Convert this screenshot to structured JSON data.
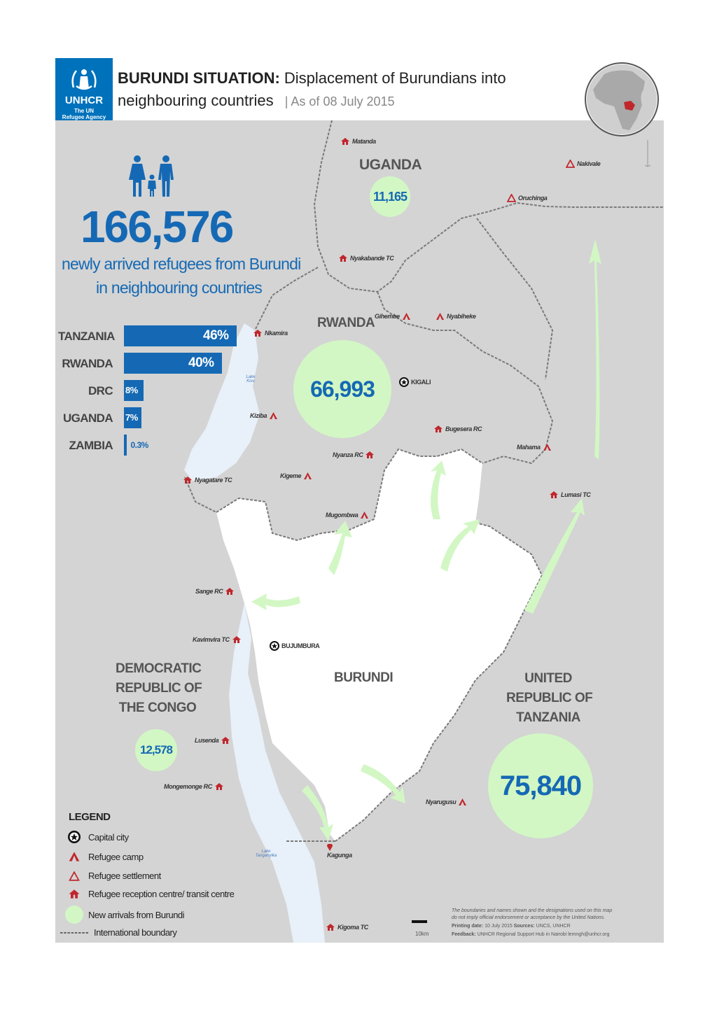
{
  "header": {
    "org_name": "UNHCR",
    "org_subtitle_1": "The UN",
    "org_subtitle_2": "Refugee Agency",
    "title_bold": "BURUNDI SITUATION:",
    "title_rest": " Displacement of Burundians into",
    "title_line2": "neighbouring countries",
    "as_of": "| As of 08 July 2015"
  },
  "summary": {
    "total": "166,576",
    "caption_line1": "newly arrived refugees from Burundi",
    "caption_line2": "in neighbouring countries"
  },
  "chart_data": {
    "type": "bar",
    "orientation": "horizontal",
    "categories": [
      "TANZANIA",
      "RWANDA",
      "DRC",
      "UGANDA",
      "ZAMBIA"
    ],
    "values": [
      46,
      40,
      8,
      7,
      0.3
    ],
    "value_labels": [
      "46%",
      "40%",
      "8%",
      "7%",
      "0.3%"
    ],
    "color": "#1569b4"
  },
  "countries": {
    "uganda": {
      "name": "UGANDA",
      "value": "11,165"
    },
    "rwanda": {
      "name": "RWANDA",
      "value": "66,993"
    },
    "drc": {
      "name_l1": "DEMOCRATIC",
      "name_l2": "REPUBLIC OF",
      "name_l3": "THE CONGO",
      "value": "12,578"
    },
    "tanzania": {
      "name_l1": "UNITED",
      "name_l2": "REPUBLIC OF",
      "name_l3": "TANZANIA",
      "value": "75,840"
    },
    "burundi": {
      "name": "BURUNDI"
    }
  },
  "sites": {
    "matanda": "Matanda",
    "nakivale": "Nakivale",
    "oruchinga": "Oruchinga",
    "nyakabande": "Nyakabande TC",
    "gihembe": "Gihembe",
    "nyabiheke": "Nyabiheke",
    "nkamira": "Nkamira",
    "kigali": "KIGALI",
    "kiziba": "Kiziba",
    "bugesera": "Bugesera RC",
    "nyanza": "Nyanza RC",
    "mahama": "Mahama",
    "kigeme": "Kigeme",
    "nyagatare": "Nyagatare TC",
    "mugombwa": "Mugombwa",
    "lumasi": "Lumasi TC",
    "sange": "Sange RC",
    "kavimvira": "Kavimvira TC",
    "bujumbura": "BUJUMBURA",
    "lusenda": "Lusenda",
    "mongemonge": "Mongemonge RC",
    "nyarugusu": "Nyarugusu",
    "kagunga": "Kagunga",
    "kigoma": "Kigoma TC"
  },
  "lakes": {
    "kivu_1": "Lake",
    "kivu_2": "Kivu",
    "tanganyika_1": "Lake",
    "tanganyika_2": "Tanganyika"
  },
  "legend": {
    "title": "LEGEND",
    "capital": "Capital city",
    "camp": "Refugee camp",
    "settlement": "Refugee settlement",
    "reception": "Refugee reception centre/ transit centre",
    "arrivals": "New arrivals from Burundi",
    "boundary": "International boundary"
  },
  "scale": {
    "label": "10km"
  },
  "footer": {
    "disclaimer_1": "The boundaries and names shown and the designations used on this map",
    "disclaimer_2": "do not imply official endorsement or acceptance by the United Nations.",
    "printing_label": "Printing date:",
    "printing_value": " 10 July 2015 ",
    "sources_label": "Sources:",
    "sources_value": " UNCS, UNHCR",
    "feedback_label": "Feedback:",
    "feedback_value": " UNHCR Regional Support Hub in Nairobi lemngh@unhcr.org"
  },
  "colors": {
    "accent": "#1569b4",
    "unhcr_blue": "#0072bc",
    "arrival_green": "#d2f7c4",
    "site_red": "#c0272d"
  }
}
